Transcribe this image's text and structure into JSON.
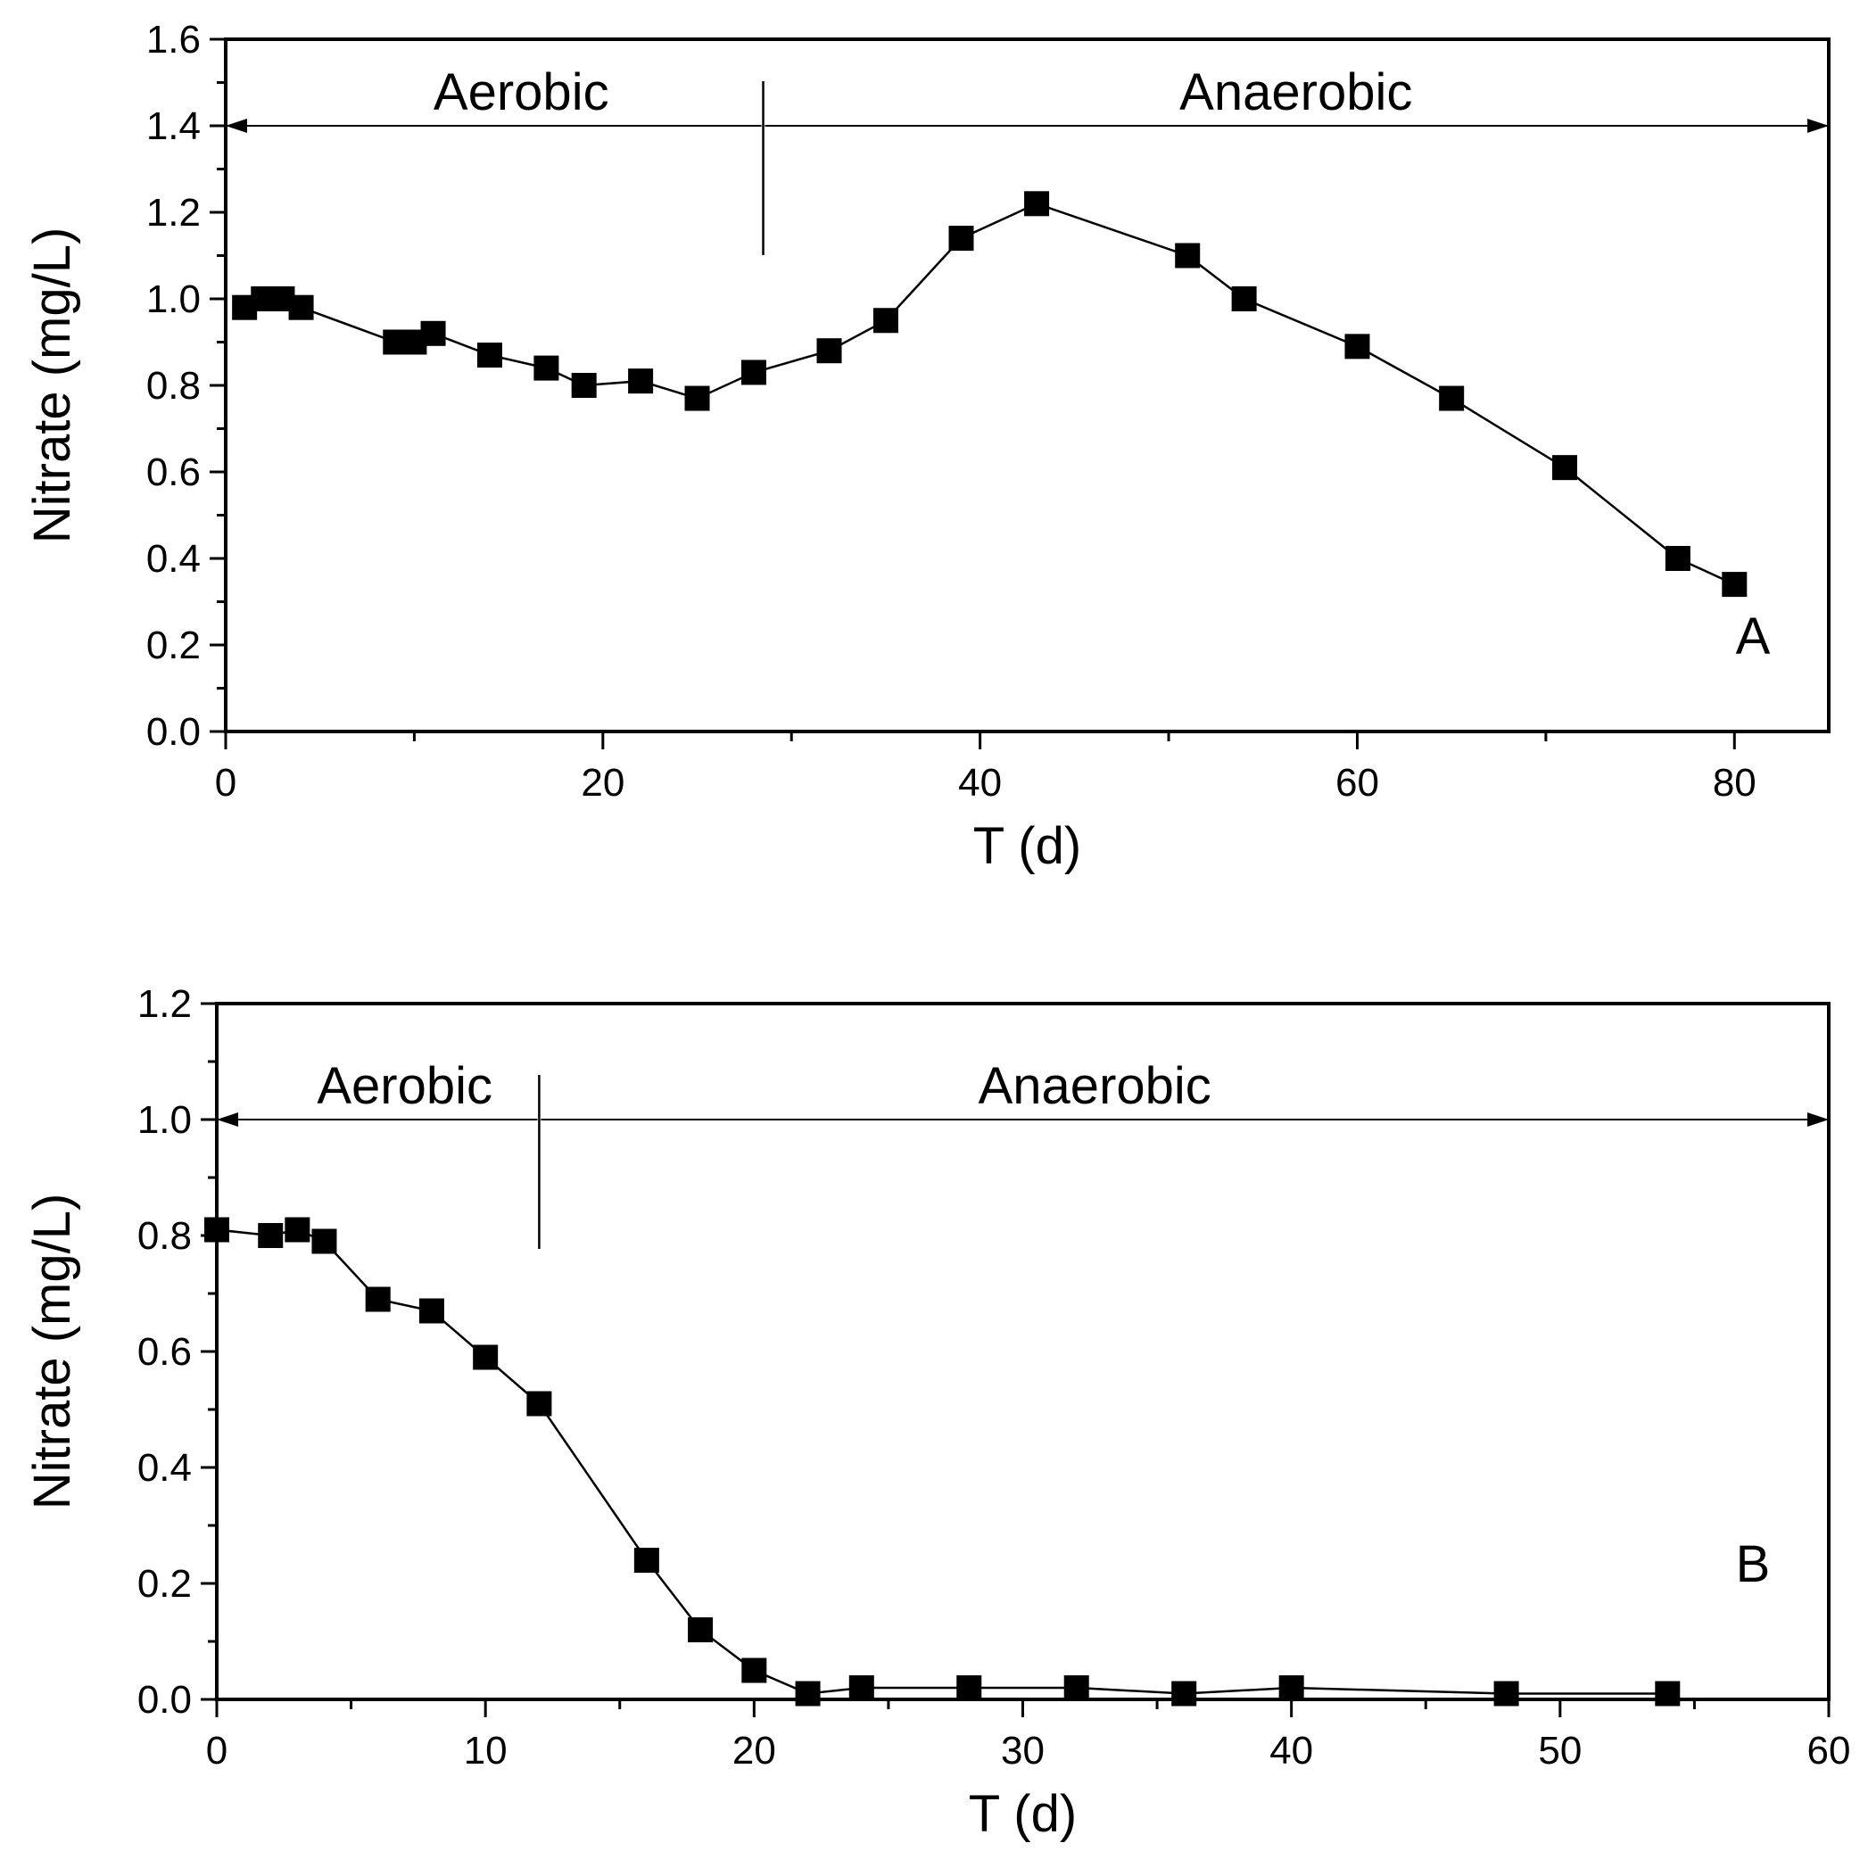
{
  "chart_data": [
    {
      "type": "line",
      "marker": "square",
      "panel_label": "A",
      "xlabel": "T (d)",
      "ylabel": "Nitrate (mg/L)",
      "xlim": [
        0,
        85
      ],
      "ylim": [
        0,
        1.6
      ],
      "xticks": [
        0,
        20,
        40,
        60,
        80
      ],
      "xtick_labels": [
        "0",
        "20",
        "40",
        "60",
        "80"
      ],
      "yticks": [
        0,
        0.2,
        0.4,
        0.6,
        0.8,
        1.0,
        1.2,
        1.4,
        1.6
      ],
      "ytick_labels": [
        "0.0",
        "0.2",
        "0.4",
        "0.6",
        "0.8",
        "1.0",
        "1.2",
        "1.4",
        "1.6"
      ],
      "grid": false,
      "phases": {
        "arrow_level": 1.4,
        "boundary_x": 28.5,
        "aerobic_label": "Aerobic",
        "anaerobic_label": "Anaerobic"
      },
      "series": [
        {
          "x": [
            1,
            2,
            3,
            4,
            9,
            10,
            11,
            14,
            17,
            19,
            22,
            25,
            28,
            32,
            35,
            39,
            43,
            51,
            54,
            60,
            65,
            71,
            77,
            80
          ],
          "y": [
            0.98,
            1.0,
            1.0,
            0.98,
            0.9,
            0.9,
            0.92,
            0.87,
            0.84,
            0.8,
            0.81,
            0.77,
            0.83,
            0.88,
            0.95,
            1.14,
            1.22,
            1.1,
            1.0,
            0.89,
            0.77,
            0.61,
            0.4,
            0.34
          ]
        }
      ]
    },
    {
      "type": "line",
      "marker": "square",
      "panel_label": "B",
      "xlabel": "T (d)",
      "ylabel": "Nitrate (mg/L)",
      "xlim": [
        0,
        60
      ],
      "ylim": [
        0,
        1.2
      ],
      "xticks": [
        0,
        10,
        20,
        30,
        40,
        50,
        60
      ],
      "xtick_labels": [
        "0",
        "10",
        "20",
        "30",
        "40",
        "50",
        "60"
      ],
      "yticks": [
        0,
        0.2,
        0.4,
        0.6,
        0.8,
        1.0,
        1.2
      ],
      "ytick_labels": [
        "0.0",
        "0.2",
        "0.4",
        "0.6",
        "0.8",
        "1.0",
        "1.2"
      ],
      "grid": false,
      "phases": {
        "arrow_level": 1.0,
        "boundary_x": 12,
        "aerobic_label": "Aerobic",
        "anaerobic_label": "Anaerobic"
      },
      "series": [
        {
          "x": [
            0,
            2,
            3,
            4,
            6,
            8,
            10,
            12,
            16,
            18,
            20,
            22,
            24,
            28,
            32,
            36,
            40,
            48,
            54
          ],
          "y": [
            0.81,
            0.8,
            0.81,
            0.79,
            0.69,
            0.67,
            0.59,
            0.51,
            0.24,
            0.12,
            0.05,
            0.01,
            0.02,
            0.02,
            0.02,
            0.01,
            0.02,
            0.01,
            0.01
          ]
        }
      ]
    }
  ]
}
